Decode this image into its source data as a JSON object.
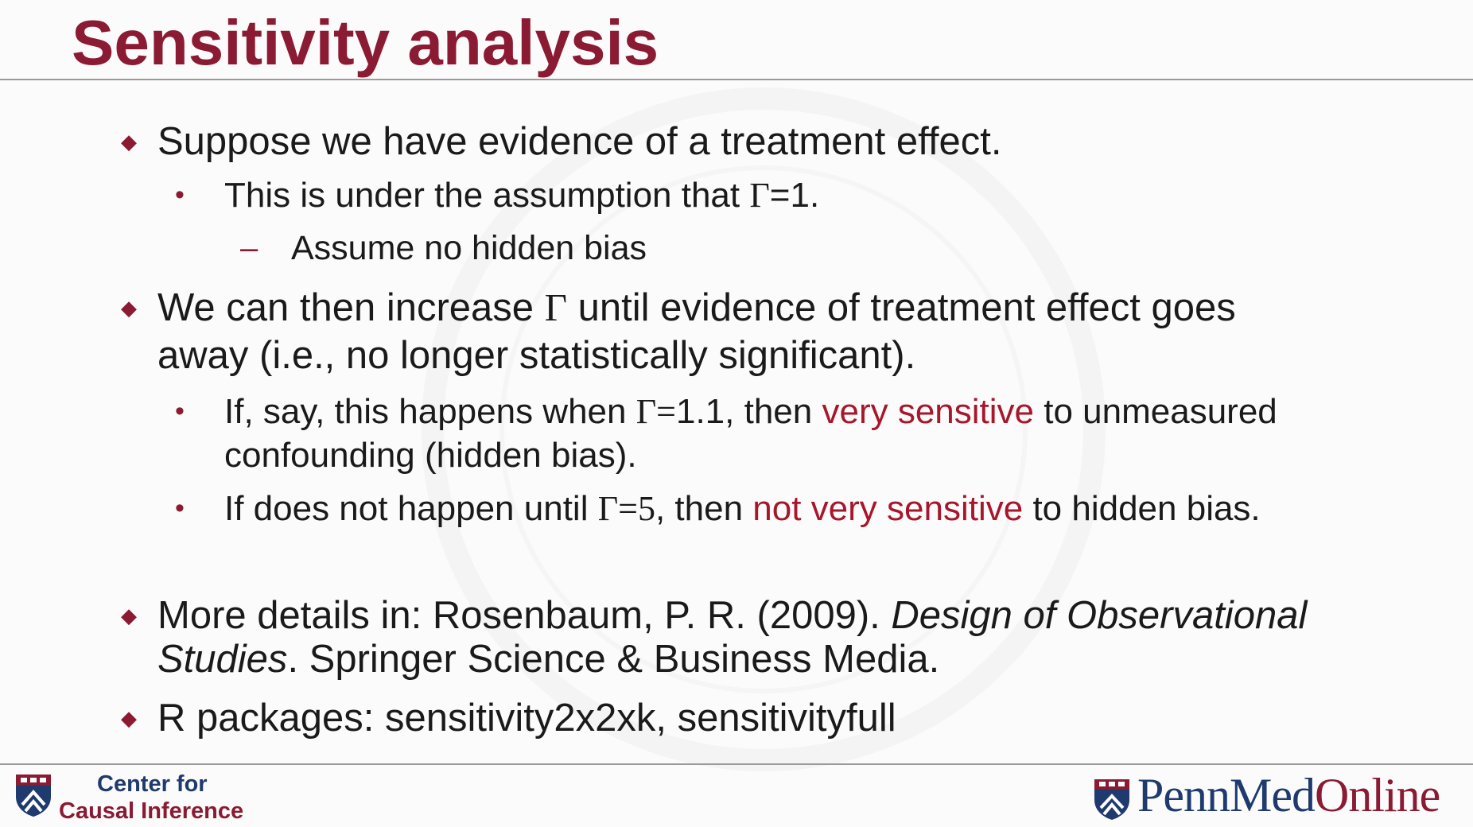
{
  "slide": {
    "title": "Sensitivity analysis",
    "bullets": {
      "b1": "Suppose we have evidence of a treatment effect.",
      "b1_s1_pre": "This is under the assumption that ",
      "b1_s1_gamma": "Γ",
      "b1_s1_post": "=1.",
      "b1_s1_d1": "Assume no hidden bias",
      "b2_line1_pre": "We can then increase ",
      "b2_line1_gamma": "Γ",
      "b2_line1_post": " until evidence of treatment effect goes",
      "b2_line2": "away (i.e., no longer statistically significant).",
      "b2_s1_pre": "If, say, this happens when ",
      "b2_s1_gamma": "Γ=",
      "b2_s1_val": "1.1, then ",
      "b2_s1_red": "very sensitive",
      "b2_s1_post": " to unmeasured",
      "b2_s1_line2": "confounding (hidden bias).",
      "b2_s2_pre": "If does not happen until ",
      "b2_s2_gamma": "Γ=5",
      "b2_s2_mid": ", then ",
      "b2_s2_red": "not very sensitive",
      "b2_s2_post": " to hidden bias.",
      "b3_pre": "More details in: Rosenbaum, P. R. (2009). ",
      "b3_italic1": "Design of Observational",
      "b3_italic2": "Studies",
      "b3_post": ". Springer Science & Business Media.",
      "b4": "R packages: sensitivity2x2xk, sensitivityfull"
    }
  },
  "footer": {
    "left_line1": "Center for",
    "left_line2": "Causal Inference",
    "right_penn": "Penn",
    "right_med": "Med",
    "right_online": "Online"
  },
  "icons": {
    "left_logo": "penn-shield-icon",
    "right_logo": "penn-shield-icon"
  },
  "colors": {
    "accent": "#8b1a33",
    "highlight": "#a8162b",
    "navy": "#1f3a6e"
  }
}
